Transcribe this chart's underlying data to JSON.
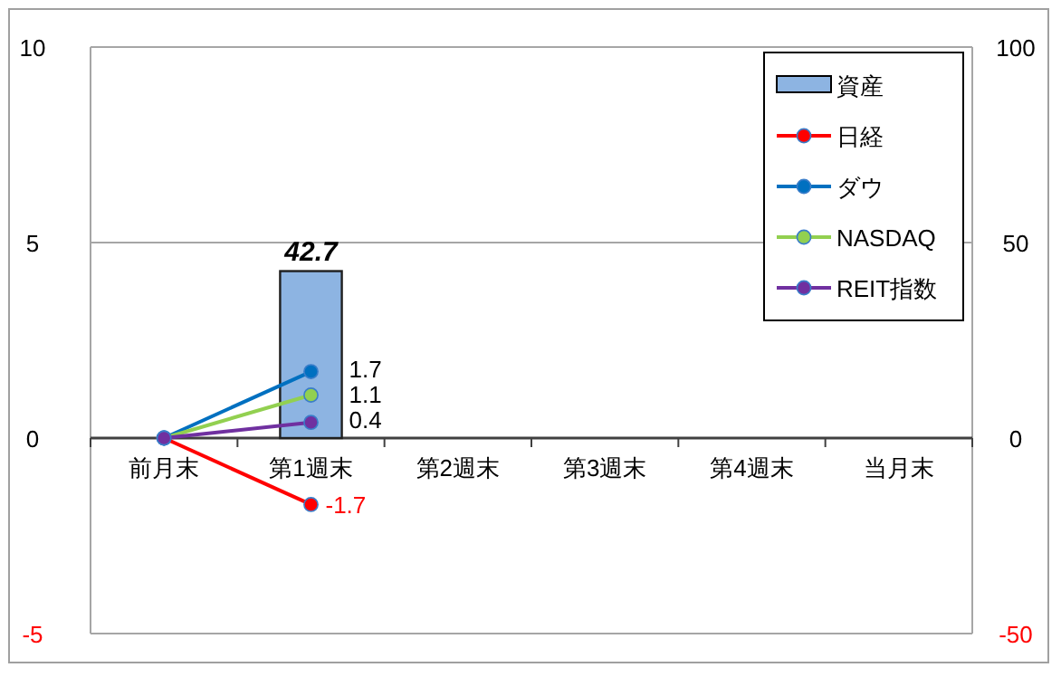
{
  "chart_data": {
    "type": "line",
    "categories": [
      "前月末",
      "第1週末",
      "第2週末",
      "第3週末",
      "第4週末",
      "当月末"
    ],
    "ylim": [
      -5,
      10
    ],
    "yticks": [
      -5,
      0,
      5,
      10
    ],
    "y2lim": [
      -50,
      100
    ],
    "y2ticks": [
      -50,
      0,
      50,
      100
    ],
    "grid": "y",
    "legend": "top right",
    "marker": "circle",
    "series": [
      {
        "name": "資産",
        "type": "bar",
        "axis": "y2",
        "color": "#8db4e2",
        "values": [
          null,
          42.7,
          null,
          null,
          null,
          null
        ],
        "value_labels": [
          null,
          "42.7",
          null,
          null,
          null,
          null
        ]
      },
      {
        "name": "日経",
        "color": "#ff0000",
        "values": [
          0,
          -1.7,
          null,
          null,
          null,
          null
        ],
        "value_labels": [
          null,
          "-1.7",
          null,
          null,
          null,
          null
        ]
      },
      {
        "name": "ダウ",
        "color": "#0070c0",
        "values": [
          0,
          1.7,
          null,
          null,
          null,
          null
        ],
        "value_labels": [
          null,
          "1.7",
          null,
          null,
          null,
          null
        ]
      },
      {
        "name": "NASDAQ",
        "color": "#92d050",
        "values": [
          0,
          1.1,
          null,
          null,
          null,
          null
        ],
        "value_labels": [
          null,
          "1.1",
          null,
          null,
          null,
          null
        ]
      },
      {
        "name": "REIT指数",
        "color": "#7030a0",
        "values": [
          0,
          0.4,
          null,
          null,
          null,
          null
        ],
        "value_labels": [
          null,
          "0.4",
          null,
          null,
          null,
          null
        ]
      }
    ]
  }
}
